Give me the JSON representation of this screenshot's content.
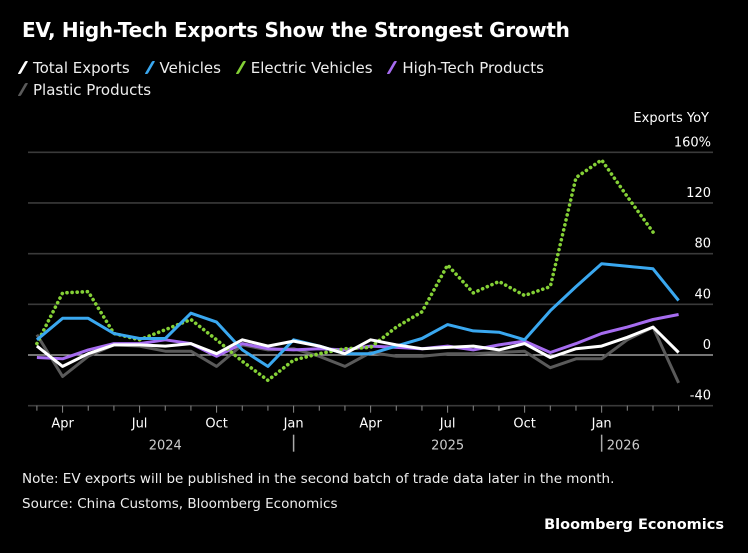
{
  "chart_data": {
    "type": "line",
    "title": "EV, High-Tech Exports Show the Strongest Growth",
    "ylabel": "Exports YoY",
    "y_unit": "%",
    "ylim": [
      -40,
      160
    ],
    "yticks": [
      -40,
      0,
      40,
      80,
      120,
      160
    ],
    "ytick_labels": [
      "-40",
      "0",
      "40",
      "80",
      "120",
      "160%"
    ],
    "grid": true,
    "x": [
      "2024-03",
      "2024-04",
      "2024-05",
      "2024-06",
      "2024-07",
      "2024-08",
      "2024-09",
      "2024-10",
      "2024-11",
      "2024-12",
      "2025-01",
      "2025-02",
      "2025-03",
      "2025-04",
      "2025-05",
      "2025-06",
      "2025-07",
      "2025-08",
      "2025-09",
      "2025-10",
      "2025-11",
      "2025-12",
      "2026-01",
      "2026-02",
      "2026-03",
      "2026-04"
    ],
    "xtick_labels": [
      {
        "label": "Apr",
        "x": "2024-04"
      },
      {
        "label": "Jul",
        "x": "2024-07"
      },
      {
        "label": "Oct",
        "x": "2024-10"
      },
      {
        "label": "Jan",
        "x": "2025-01"
      },
      {
        "label": "Apr",
        "x": "2025-04"
      },
      {
        "label": "Jul",
        "x": "2025-07"
      },
      {
        "label": "Oct",
        "x": "2025-10"
      },
      {
        "label": "Jan",
        "x": "2026-01"
      }
    ],
    "year_labels": [
      {
        "label": "2024",
        "x": "2024-08"
      },
      {
        "label": "2025",
        "x": "2025-07"
      },
      {
        "label": "2026",
        "x": "2026-02"
      }
    ],
    "series": [
      {
        "name": "Plastic Products",
        "color": "#5a5a5a",
        "dash": false,
        "values": [
          16,
          -17,
          -1,
          8,
          7,
          3,
          3,
          -9,
          8,
          4,
          5,
          -1,
          -9,
          2,
          -1,
          -1,
          1,
          1,
          2,
          3,
          -10,
          -3,
          -3,
          12,
          22,
          -22
        ]
      },
      {
        "name": "High-Tech Products",
        "color": "#a66cf0",
        "dash": false,
        "values": [
          -2,
          -3,
          4,
          9,
          9,
          12,
          9,
          -1,
          9,
          5,
          4,
          5,
          4,
          7,
          6,
          5,
          7,
          4,
          8,
          11,
          2,
          9,
          17,
          22,
          28,
          32
        ]
      },
      {
        "name": "Electric Vehicles",
        "color": "#84d036",
        "dash": true,
        "values": [
          9,
          49,
          50,
          17,
          12,
          20,
          28,
          12,
          -5,
          -20,
          -4,
          1,
          5,
          6,
          22,
          34,
          71,
          49,
          58,
          47,
          54,
          140,
          154,
          125,
          97,
          null
        ]
      },
      {
        "name": "Vehicles",
        "color": "#3aa8f0",
        "dash": false,
        "values": [
          12,
          29,
          29,
          17,
          13,
          13,
          33,
          26,
          4,
          -9,
          12,
          7,
          1,
          1,
          7,
          13,
          24,
          19,
          18,
          12,
          35,
          54,
          72,
          70,
          68,
          43
        ]
      },
      {
        "name": "Total Exports",
        "color": "#ffffff",
        "dash": false,
        "values": [
          7,
          -9,
          1,
          8,
          8,
          7,
          9,
          1,
          12,
          7,
          11,
          7,
          1,
          12,
          8,
          5,
          6,
          7,
          4,
          9,
          -2,
          5,
          7,
          14,
          22,
          2
        ]
      }
    ],
    "legend": [
      "Total Exports",
      "Vehicles",
      "Electric Vehicles",
      "High-Tech Products",
      "Plastic Products"
    ],
    "legend_placement": "top-left"
  },
  "legend_colors": {
    "Total Exports": "#ffffff",
    "Vehicles": "#3aa8f0",
    "Electric Vehicles": "#84d036",
    "High-Tech Products": "#a66cf0",
    "Plastic Products": "#5a5a5a"
  },
  "note": "Note: EV exports will be published in the second batch of trade data later in the month.",
  "source": "Source: China Customs, Bloomberg Economics",
  "brand": "Bloomberg Economics"
}
